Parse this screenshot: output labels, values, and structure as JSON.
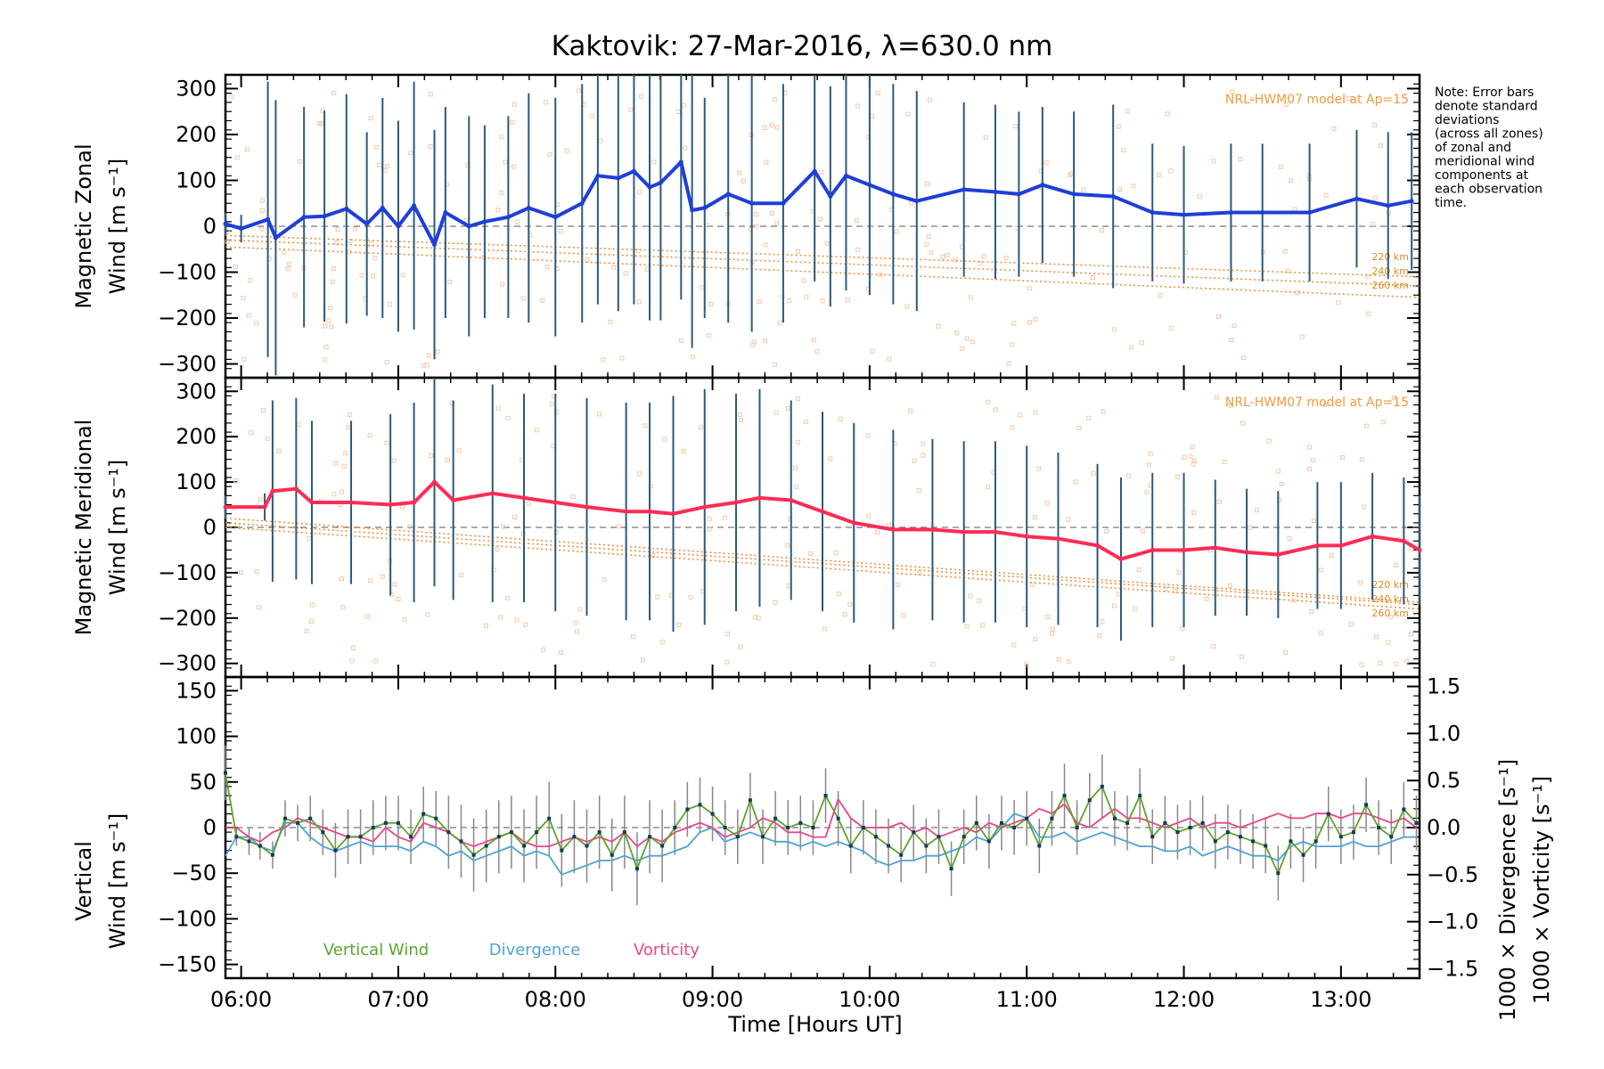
{
  "figure": {
    "title": "Kaktovik: 27-Mar-2016, λ=630.0 nm",
    "xlabel": "Time [Hours UT]",
    "note": [
      "Note: Error bars",
      "denote standard",
      "deviations",
      "(across all zones)",
      "of zonal and",
      "meridional wind",
      "components at",
      "each observation",
      "time."
    ],
    "model_label": "NRL-HWM07 model at Ap=15",
    "alt_labels": [
      "220 km",
      "240 km",
      "260 km"
    ]
  },
  "colors": {
    "zonal": "#1f3fd8",
    "meridional": "#ff2c55",
    "vertical": "#5aa52a",
    "divergence": "#4fa3d6",
    "vorticity": "#e8458a",
    "error_bar": "#2a5a80",
    "model": "#f08a30",
    "scatter": "#f6c8a6"
  },
  "chart_data": [
    {
      "type": "line",
      "ylabel_lines": [
        "Magnetic Zonal",
        "Wind [m s⁻¹]"
      ],
      "ylim": [
        -330,
        330
      ],
      "xlim": [
        5.9,
        13.5
      ],
      "x_ticks": [
        "06:00",
        "07:00",
        "08:00",
        "09:00",
        "10:00",
        "11:00",
        "12:00",
        "13:00"
      ],
      "y_ticks": [
        "300",
        "200",
        "100",
        "0",
        "−100",
        "−200",
        "−300"
      ],
      "x": [
        5.9,
        6.0,
        6.17,
        6.22,
        6.4,
        6.53,
        6.67,
        6.8,
        6.9,
        7.0,
        7.1,
        7.23,
        7.3,
        7.45,
        7.55,
        7.7,
        7.83,
        8.0,
        8.17,
        8.27,
        8.4,
        8.5,
        8.6,
        8.67,
        8.8,
        8.87,
        8.95,
        9.1,
        9.25,
        9.45,
        9.65,
        9.75,
        9.85,
        10.0,
        10.15,
        10.3,
        10.6,
        10.8,
        10.95,
        11.1,
        11.3,
        11.55,
        11.8,
        12.0,
        12.3,
        12.5,
        12.8,
        13.1,
        13.3,
        13.45
      ],
      "series": [
        {
          "values": [
            5,
            -5,
            15,
            -25,
            20,
            22,
            38,
            5,
            40,
            0,
            45,
            -40,
            30,
            0,
            10,
            20,
            40,
            20,
            50,
            110,
            105,
            120,
            85,
            95,
            140,
            35,
            40,
            70,
            50,
            50,
            120,
            65,
            110,
            90,
            70,
            55,
            80,
            75,
            70,
            90,
            70,
            65,
            30,
            25,
            30,
            30,
            30,
            60,
            45,
            55
          ],
          "err": [
            25,
            30,
            300,
            300,
            240,
            230,
            250,
            200,
            240,
            230,
            270,
            250,
            230,
            240,
            210,
            220,
            250,
            260,
            260,
            280,
            290,
            290,
            290,
            300,
            300,
            300,
            240,
            280,
            280,
            260,
            240,
            240,
            250,
            240,
            240,
            240,
            190,
            190,
            180,
            170,
            180,
            200,
            150,
            150,
            150,
            150,
            150,
            150,
            160,
            150
          ]
        }
      ],
      "model": {
        "x": [
          5.9,
          13.5
        ],
        "y": [
          [
            -20,
            -110
          ],
          [
            -30,
            -130
          ],
          [
            -45,
            -155
          ]
        ]
      }
    },
    {
      "type": "line",
      "ylabel_lines": [
        "Magnetic Meridional",
        "Wind [m s⁻¹]"
      ],
      "ylim": [
        -330,
        330
      ],
      "xlim": [
        5.9,
        13.5
      ],
      "x_ticks": [
        "06:00",
        "07:00",
        "08:00",
        "09:00",
        "10:00",
        "11:00",
        "12:00",
        "13:00"
      ],
      "y_ticks": [
        "300",
        "200",
        "100",
        "0",
        "−100",
        "−200",
        "−300"
      ],
      "x": [
        5.9,
        6.15,
        6.2,
        6.35,
        6.45,
        6.7,
        6.95,
        7.1,
        7.23,
        7.35,
        7.6,
        7.8,
        8.0,
        8.2,
        8.45,
        8.6,
        8.75,
        8.95,
        9.15,
        9.3,
        9.5,
        9.7,
        9.9,
        10.15,
        10.4,
        10.6,
        10.8,
        11.0,
        11.2,
        11.45,
        11.6,
        11.8,
        12.0,
        12.2,
        12.4,
        12.6,
        12.85,
        13.0,
        13.2,
        13.4,
        13.5
      ],
      "series": [
        {
          "values": [
            45,
            45,
            80,
            85,
            55,
            55,
            50,
            55,
            100,
            60,
            75,
            65,
            55,
            45,
            35,
            35,
            30,
            45,
            55,
            65,
            60,
            35,
            10,
            -5,
            -5,
            -10,
            -10,
            -20,
            -25,
            -40,
            -70,
            -50,
            -50,
            -45,
            -55,
            -60,
            -40,
            -40,
            -20,
            -30,
            -50
          ],
          "err": [
            25,
            30,
            200,
            200,
            180,
            180,
            200,
            220,
            230,
            220,
            240,
            230,
            240,
            240,
            240,
            240,
            260,
            260,
            240,
            240,
            220,
            220,
            220,
            220,
            200,
            200,
            200,
            200,
            190,
            180,
            180,
            170,
            170,
            150,
            140,
            140,
            140,
            140,
            140,
            140,
            120
          ]
        }
      ],
      "model": {
        "x": [
          5.9,
          13.5
        ],
        "y": [
          [
            20,
            -165
          ],
          [
            10,
            -170
          ],
          [
            0,
            -180
          ]
        ]
      }
    },
    {
      "type": "line",
      "ylabel_lines_left": [
        "Vertical",
        "Wind [m s⁻¹]"
      ],
      "ylabel_right_div": "1000 × Divergence [s⁻¹]",
      "ylabel_right_vor": "1000 × Vorticity [s⁻¹]",
      "ylim": [
        -165,
        165
      ],
      "ylim_right": [
        -1.6,
        1.6
      ],
      "xlim": [
        5.9,
        13.5
      ],
      "x_ticks": [
        "06:00",
        "07:00",
        "08:00",
        "09:00",
        "10:00",
        "11:00",
        "12:00",
        "13:00"
      ],
      "y_ticks": [
        "150",
        "100",
        "50",
        "0",
        "−50",
        "−100",
        "−150"
      ],
      "y_ticks_right": [
        "1.5",
        "1.0",
        "0.5",
        "0.0",
        "−0.5",
        "−1.0",
        "−1.5"
      ],
      "legend": [
        "Vertical Wind",
        "Divergence",
        "Vorticity"
      ],
      "x": [
        5.9,
        5.97,
        6.05,
        6.12,
        6.2,
        6.28,
        6.36,
        6.44,
        6.52,
        6.6,
        6.68,
        6.76,
        6.84,
        6.92,
        7.0,
        7.08,
        7.16,
        7.24,
        7.32,
        7.4,
        7.48,
        7.56,
        7.64,
        7.72,
        7.8,
        7.88,
        7.96,
        8.04,
        8.12,
        8.2,
        8.28,
        8.36,
        8.44,
        8.52,
        8.6,
        8.68,
        8.76,
        8.84,
        8.92,
        9.0,
        9.08,
        9.16,
        9.24,
        9.32,
        9.4,
        9.48,
        9.56,
        9.64,
        9.72,
        9.8,
        9.88,
        9.96,
        10.04,
        10.12,
        10.2,
        10.28,
        10.36,
        10.44,
        10.52,
        10.6,
        10.68,
        10.76,
        10.84,
        10.92,
        11.0,
        11.08,
        11.16,
        11.24,
        11.32,
        11.4,
        11.48,
        11.56,
        11.64,
        11.72,
        11.8,
        11.88,
        11.96,
        12.04,
        12.12,
        12.2,
        12.28,
        12.36,
        12.44,
        12.52,
        12.6,
        12.68,
        12.76,
        12.84,
        12.92,
        13.0,
        13.08,
        13.16,
        13.24,
        13.32,
        13.4,
        13.48
      ],
      "series": [
        {
          "name": "Vertical Wind",
          "values": [
            60,
            -10,
            -15,
            -20,
            -30,
            10,
            5,
            10,
            -5,
            -25,
            -10,
            -10,
            0,
            5,
            5,
            -10,
            15,
            10,
            -5,
            -15,
            -30,
            -20,
            -10,
            -5,
            -20,
            -5,
            10,
            -25,
            -10,
            -20,
            -5,
            -30,
            -5,
            -45,
            -10,
            -20,
            0,
            20,
            25,
            15,
            0,
            -10,
            30,
            -10,
            10,
            0,
            5,
            0,
            35,
            10,
            -20,
            0,
            -10,
            -20,
            -30,
            -5,
            -20,
            -10,
            -45,
            -10,
            5,
            -15,
            5,
            0,
            10,
            -20,
            10,
            35,
            0,
            30,
            45,
            10,
            5,
            35,
            -10,
            5,
            -5,
            0,
            5,
            -15,
            -5,
            -10,
            -15,
            -20,
            -50,
            -15,
            -30,
            -15,
            15,
            -10,
            -5,
            25,
            0,
            -10,
            20,
            5
          ],
          "err": [
            30,
            10,
            15,
            15,
            15,
            20,
            20,
            25,
            25,
            30,
            30,
            30,
            30,
            30,
            30,
            30,
            30,
            30,
            40,
            40,
            40,
            40,
            40,
            40,
            40,
            40,
            40,
            40,
            40,
            40,
            40,
            40,
            40,
            40,
            40,
            40,
            30,
            30,
            30,
            30,
            30,
            30,
            30,
            30,
            30,
            30,
            30,
            30,
            30,
            30,
            30,
            30,
            30,
            30,
            30,
            30,
            30,
            30,
            30,
            30,
            30,
            30,
            30,
            30,
            30,
            30,
            30,
            35,
            30,
            30,
            35,
            30,
            30,
            30,
            30,
            30,
            30,
            30,
            30,
            30,
            30,
            30,
            30,
            30,
            30,
            30,
            30,
            30,
            30,
            30,
            30,
            30,
            30,
            30,
            30,
            30
          ]
        },
        {
          "name": "Divergence",
          "values": [
            -0.3,
            -0.1,
            -0.1,
            -0.2,
            -0.25,
            0.05,
            0.05,
            -0.1,
            -0.2,
            -0.25,
            -0.2,
            -0.15,
            -0.2,
            -0.2,
            -0.2,
            -0.25,
            -0.15,
            -0.2,
            -0.3,
            -0.25,
            -0.35,
            -0.3,
            -0.25,
            -0.2,
            -0.3,
            -0.25,
            -0.3,
            -0.5,
            -0.45,
            -0.4,
            -0.35,
            -0.35,
            -0.3,
            -0.35,
            -0.3,
            -0.3,
            -0.25,
            -0.2,
            -0.05,
            0.0,
            -0.15,
            -0.1,
            -0.05,
            -0.1,
            -0.15,
            -0.15,
            -0.2,
            -0.15,
            -0.2,
            -0.15,
            -0.2,
            -0.25,
            -0.35,
            -0.4,
            -0.35,
            -0.35,
            -0.3,
            -0.3,
            -0.25,
            -0.2,
            -0.1,
            -0.15,
            0.0,
            0.15,
            0.1,
            -0.1,
            -0.1,
            -0.05,
            -0.15,
            -0.1,
            -0.05,
            -0.1,
            -0.15,
            -0.2,
            -0.2,
            -0.25,
            -0.25,
            -0.2,
            -0.3,
            -0.25,
            -0.2,
            -0.25,
            -0.3,
            -0.3,
            -0.35,
            -0.2,
            -0.15,
            -0.2,
            -0.2,
            -0.2,
            -0.15,
            -0.2,
            -0.2,
            -0.15,
            -0.1,
            -0.1
          ]
        },
        {
          "name": "Vorticity",
          "values": [
            0.0,
            0.0,
            -0.1,
            -0.15,
            -0.05,
            0.0,
            0.1,
            0.05,
            0.0,
            -0.05,
            -0.1,
            -0.1,
            -0.15,
            0.0,
            -0.1,
            -0.15,
            0.05,
            0.0,
            -0.05,
            -0.15,
            -0.2,
            -0.15,
            -0.1,
            -0.05,
            -0.15,
            -0.2,
            -0.2,
            -0.15,
            -0.1,
            -0.15,
            -0.1,
            -0.15,
            -0.05,
            -0.2,
            -0.1,
            -0.15,
            -0.05,
            0.0,
            0.05,
            0.0,
            -0.1,
            -0.05,
            0.0,
            0.1,
            0.05,
            -0.05,
            -0.05,
            -0.1,
            -0.1,
            0.3,
            0.1,
            0.0,
            0.0,
            0.0,
            0.05,
            -0.05,
            0.0,
            -0.1,
            -0.05,
            0.0,
            -0.05,
            0.05,
            0.0,
            0.05,
            0.1,
            0.2,
            0.15,
            0.25,
            0.05,
            0.0,
            0.1,
            0.2,
            0.1,
            0.1,
            0.05,
            0.0,
            0.05,
            0.1,
            0.0,
            0.05,
            0.05,
            0.0,
            0.05,
            0.1,
            0.15,
            0.1,
            0.1,
            0.15,
            0.15,
            0.1,
            0.15,
            0.15,
            0.1,
            0.05,
            0.1,
            0.0
          ]
        }
      ]
    }
  ]
}
